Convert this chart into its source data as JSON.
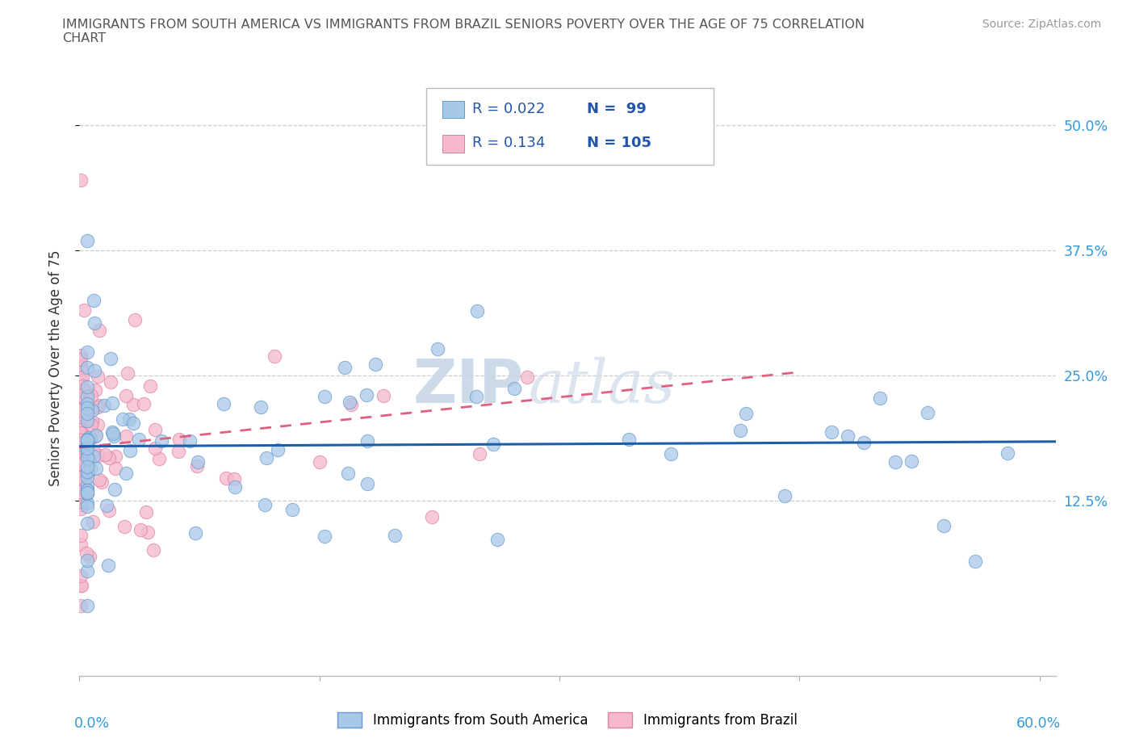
{
  "title_line1": "IMMIGRANTS FROM SOUTH AMERICA VS IMMIGRANTS FROM BRAZIL SENIORS POVERTY OVER THE AGE OF 75 CORRELATION",
  "title_line2": "CHART",
  "source": "Source: ZipAtlas.com",
  "ylabel": "Seniors Poverty Over the Age of 75",
  "ytick_vals": [
    0.125,
    0.25,
    0.375,
    0.5
  ],
  "ytick_labels": [
    "12.5%",
    "25.0%",
    "37.5%",
    "50.0%"
  ],
  "xlim": [
    0.0,
    0.61
  ],
  "ylim": [
    -0.05,
    0.565
  ],
  "color_blue_fill": "#a8c8e8",
  "color_blue_edge": "#6699cc",
  "color_blue_line": "#1a5fa8",
  "color_pink_fill": "#f5b8cc",
  "color_pink_edge": "#e080a0",
  "color_pink_line": "#e06080",
  "watermark_zip": "#c8d8e8",
  "watermark_atlas": "#d0dce8",
  "legend_color": "#2255aa"
}
